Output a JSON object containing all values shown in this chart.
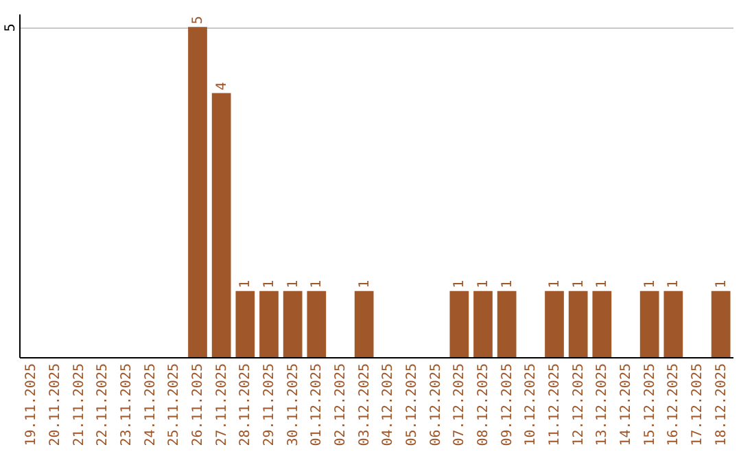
{
  "chart_data": {
    "type": "bar",
    "categories": [
      "19.11.2025",
      "20.11.2025",
      "21.11.2025",
      "22.11.2025",
      "23.11.2025",
      "24.11.2025",
      "25.11.2025",
      "26.11.2025",
      "27.11.2025",
      "28.11.2025",
      "29.11.2025",
      "30.11.2025",
      "01.12.2025",
      "02.12.2025",
      "03.12.2025",
      "04.12.2025",
      "05.12.2025",
      "06.12.2025",
      "07.12.2025",
      "08.12.2025",
      "09.12.2025",
      "10.12.2025",
      "11.12.2025",
      "12.12.2025",
      "13.12.2025",
      "14.12.2025",
      "15.12.2025",
      "16.12.2025",
      "17.12.2025",
      "18.12.2025"
    ],
    "values": [
      0,
      0,
      0,
      0,
      0,
      0,
      0,
      5,
      4,
      1,
      1,
      1,
      1,
      0,
      1,
      0,
      0,
      0,
      1,
      1,
      1,
      0,
      1,
      1,
      1,
      0,
      1,
      1,
      0,
      1
    ],
    "value_labels": [
      null,
      null,
      null,
      null,
      null,
      null,
      null,
      "5",
      "4",
      "1",
      "1",
      "1",
      "1",
      null,
      "1",
      null,
      null,
      null,
      "1",
      "1",
      "1",
      null,
      "1",
      "1",
      "1",
      null,
      "1",
      "1",
      null,
      "1"
    ],
    "color": "#a0572a",
    "ylim": [
      0,
      5.2
    ],
    "yticks": [
      5
    ],
    "grid": "y"
  }
}
